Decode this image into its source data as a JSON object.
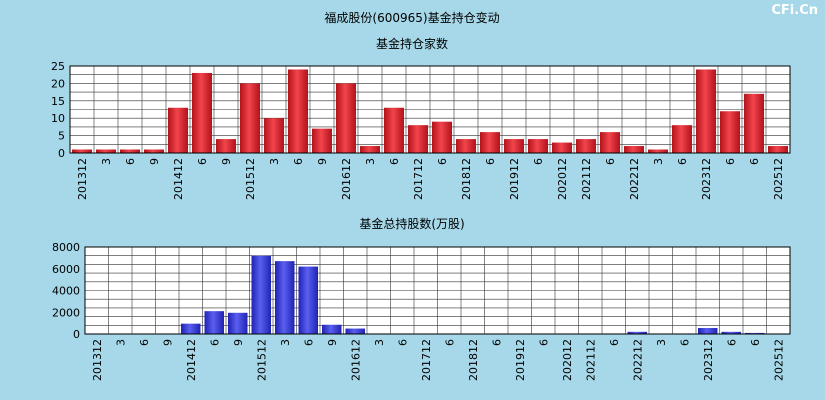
{
  "page": {
    "title": "福成股份(600965)基金持仓变动",
    "watermark": "CFi.Cn"
  },
  "chart_data": [
    {
      "type": "bar",
      "title": "基金持仓家数",
      "x_tick_labels": [
        "201312",
        "3",
        "6",
        "9",
        "201412",
        "6",
        "9",
        "201512",
        "3",
        "6",
        "9",
        "201612",
        "3",
        "6",
        "201712",
        "6",
        "201812",
        "6",
        "201912",
        "6",
        "202012",
        "202112",
        "6",
        "202212",
        "3",
        "6",
        "202312",
        "6",
        "6",
        "202512"
      ],
      "values": [
        1,
        1,
        1,
        1,
        13,
        23,
        4,
        20,
        10,
        24,
        7,
        20,
        2,
        13,
        8,
        9,
        4,
        6,
        4,
        4,
        3,
        4,
        6,
        2,
        1,
        8,
        24,
        12,
        17,
        2
      ],
      "ylim": [
        0,
        25
      ],
      "yticks": [
        0,
        5,
        10,
        15,
        20,
        25
      ],
      "grid": true,
      "bar_color": "#e8323a"
    },
    {
      "type": "bar",
      "title": "基金总持股数(万股)",
      "x_tick_labels": [
        "201312",
        "3",
        "6",
        "9",
        "201412",
        "6",
        "9",
        "201512",
        "3",
        "6",
        "9",
        "201612",
        "3",
        "6",
        "201712",
        "6",
        "201812",
        "6",
        "201912",
        "6",
        "202012",
        "202112",
        "6",
        "202212",
        "3",
        "6",
        "202312",
        "6",
        "6",
        "202512"
      ],
      "values": [
        50,
        50,
        50,
        50,
        950,
        2100,
        1950,
        7200,
        6700,
        6200,
        850,
        500,
        50,
        50,
        50,
        50,
        50,
        50,
        50,
        50,
        50,
        50,
        50,
        200,
        50,
        50,
        550,
        200,
        100,
        50
      ],
      "ylim": [
        0,
        8000
      ],
      "yticks": [
        0,
        2000,
        4000,
        6000,
        8000
      ],
      "grid": true,
      "bar_color": "#3b3fe0"
    }
  ]
}
